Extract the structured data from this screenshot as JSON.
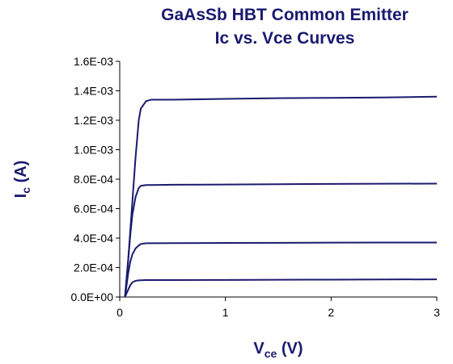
{
  "chart_data": {
    "type": "line",
    "title": [
      "GaAsSb HBT Common Emitter",
      "Ic vs. Vce Curves"
    ],
    "x_label": [
      "V",
      "ce",
      " (V)"
    ],
    "y_label": [
      "I",
      "c",
      " (A)"
    ],
    "x": [
      0.05,
      0.08,
      0.1,
      0.12,
      0.15,
      0.18,
      0.2,
      0.25,
      0.3,
      0.5,
      1,
      1.5,
      2,
      2.5,
      3
    ],
    "series": [
      {
        "color": "#1a1a70",
        "values": [
          0,
          0.00025,
          0.00045,
          0.00065,
          0.00095,
          0.0012,
          0.00128,
          0.00133,
          0.00134,
          0.00134,
          0.001345,
          0.00135,
          0.001352,
          0.001355,
          0.00136
        ]
      },
      {
        "color": "#1a1a70",
        "values": [
          0,
          0.00025,
          0.00042,
          0.00056,
          0.00068,
          0.00074,
          0.000755,
          0.00076,
          0.00076,
          0.000762,
          0.000764,
          0.000766,
          0.000768,
          0.000769,
          0.00077
        ]
      },
      {
        "color": "#1a1a70",
        "values": [
          0,
          0.00016,
          0.00024,
          0.00029,
          0.00033,
          0.00035,
          0.00036,
          0.000365,
          0.000365,
          0.000366,
          0.000367,
          0.000368,
          0.000369,
          0.00037,
          0.00037
        ]
      },
      {
        "color": "#1a1a70",
        "values": [
          0,
          5e-05,
          8e-05,
          0.0001,
          0.00011,
          0.000113,
          0.000114,
          0.000115,
          0.000115,
          0.000115,
          0.000116,
          0.000117,
          0.000118,
          0.000119,
          0.00012
        ]
      }
    ],
    "xlim": [
      0,
      3
    ],
    "xticks": [
      0,
      1,
      2,
      3
    ],
    "ylim": [
      0,
      0.0016
    ],
    "yticks": [
      {
        "value": 0,
        "label": "0.0E+00"
      },
      {
        "value": 0.0002,
        "label": "2.0E-04"
      },
      {
        "value": 0.0004,
        "label": "4.0E-04"
      },
      {
        "value": 0.0006,
        "label": "6.0E-04"
      },
      {
        "value": 0.0008,
        "label": "8.0E-04"
      },
      {
        "value": 0.001,
        "label": "1.0E-03"
      },
      {
        "value": 0.0012,
        "label": "1.2E-03"
      },
      {
        "value": 0.0014,
        "label": "1.4E-03"
      },
      {
        "value": 0.0016,
        "label": "1.6E-03"
      }
    ],
    "grid": false
  }
}
